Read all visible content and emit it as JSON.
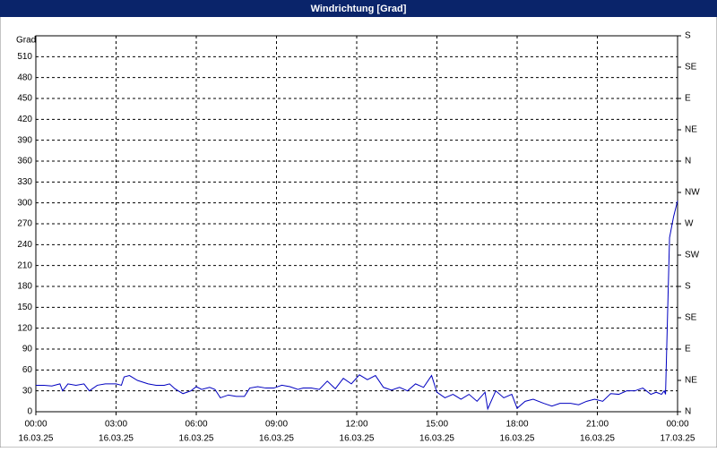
{
  "chart_data": {
    "type": "line",
    "title": "Windrichtung [Grad]",
    "ylabel": "Grad",
    "xlim": [
      0,
      24
    ],
    "xticks": [
      {
        "value": 0,
        "label": "00:00"
      },
      {
        "value": 3,
        "label": "03:00"
      },
      {
        "value": 6,
        "label": "06:00"
      },
      {
        "value": 9,
        "label": "09:00"
      },
      {
        "value": 12,
        "label": "12:00"
      },
      {
        "value": 15,
        "label": "15:00"
      },
      {
        "value": 18,
        "label": "18:00"
      },
      {
        "value": 21,
        "label": "21:00"
      },
      {
        "value": 24,
        "label": "00:00"
      }
    ],
    "xtick_dates": [
      "16.03.25",
      "16.03.25",
      "16.03.25",
      "16.03.25",
      "16.03.25",
      "16.03.25",
      "16.03.25",
      "16.03.25",
      "17.03.25"
    ],
    "ylim": [
      0,
      540
    ],
    "yticks": [
      0,
      30,
      60,
      90,
      120,
      150,
      180,
      210,
      240,
      270,
      300,
      330,
      360,
      390,
      420,
      450,
      480,
      510
    ],
    "y2lim": [
      0,
      540
    ],
    "y2ticks": [
      {
        "value": 0,
        "label": "N"
      },
      {
        "value": 45,
        "label": "NE"
      },
      {
        "value": 90,
        "label": "E"
      },
      {
        "value": 135,
        "label": "SE"
      },
      {
        "value": 180,
        "label": "S"
      },
      {
        "value": 225,
        "label": "SW"
      },
      {
        "value": 270,
        "label": "W"
      },
      {
        "value": 315,
        "label": "NW"
      },
      {
        "value": 360,
        "label": "N"
      },
      {
        "value": 405,
        "label": "NE"
      },
      {
        "value": 450,
        "label": "E"
      },
      {
        "value": 495,
        "label": "SE"
      },
      {
        "value": 540,
        "label": "S"
      }
    ],
    "grid": true,
    "series": [
      {
        "color": "#0000c0",
        "x": [
          0,
          0.3,
          0.6,
          0.9,
          1.0,
          1.2,
          1.5,
          1.8,
          2.0,
          2.3,
          2.6,
          3.0,
          3.2,
          3.3,
          3.5,
          3.8,
          4.2,
          4.5,
          4.8,
          5.0,
          5.2,
          5.5,
          5.8,
          6.0,
          6.2,
          6.5,
          6.7,
          6.9,
          7.2,
          7.5,
          7.8,
          8.0,
          8.3,
          8.6,
          8.9,
          9.2,
          9.5,
          9.8,
          10.0,
          10.3,
          10.6,
          10.9,
          11.2,
          11.5,
          11.8,
          12.1,
          12.4,
          12.7,
          13.0,
          13.3,
          13.6,
          13.9,
          14.2,
          14.5,
          14.8,
          15.0,
          15.3,
          15.6,
          15.9,
          16.2,
          16.5,
          16.8,
          16.9,
          17.2,
          17.5,
          17.8,
          18.0,
          18.3,
          18.6,
          19.0,
          19.3,
          19.6,
          20.0,
          20.3,
          20.6,
          20.9,
          21.2,
          21.5,
          21.8,
          22.1,
          22.4,
          22.7,
          23.0,
          23.2,
          23.4,
          23.5,
          23.55,
          23.7,
          23.85,
          24.0
        ],
        "values": [
          38,
          38,
          37,
          40,
          30,
          40,
          38,
          40,
          30,
          38,
          40,
          40,
          38,
          50,
          52,
          45,
          40,
          38,
          38,
          40,
          33,
          26,
          30,
          36,
          32,
          35,
          32,
          20,
          24,
          22,
          22,
          34,
          36,
          34,
          34,
          38,
          36,
          32,
          34,
          34,
          32,
          44,
          33,
          48,
          40,
          53,
          46,
          52,
          35,
          31,
          35,
          30,
          40,
          35,
          52,
          28,
          20,
          25,
          18,
          25,
          15,
          28,
          4,
          30,
          20,
          25,
          5,
          15,
          18,
          12,
          8,
          12,
          12,
          10,
          15,
          18,
          15,
          26,
          25,
          30,
          30,
          34,
          25,
          28,
          25,
          30,
          25,
          250,
          280,
          303
        ]
      }
    ]
  }
}
